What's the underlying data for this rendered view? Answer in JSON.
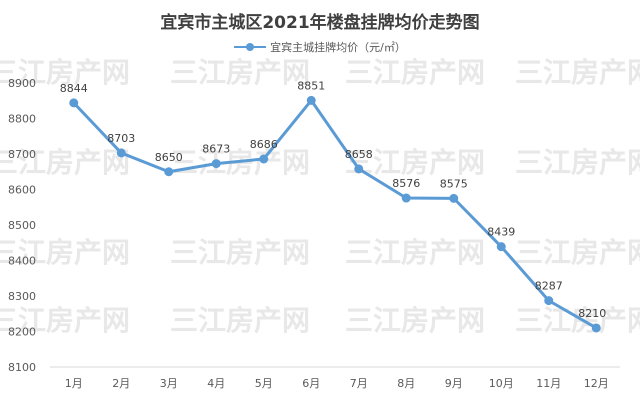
{
  "chart_data": {
    "type": "line",
    "title": "宜宾市主城区2021年楼盘挂牌均价走势图",
    "categories": [
      "1月",
      "2月",
      "3月",
      "4月",
      "5月",
      "6月",
      "7月",
      "8月",
      "9月",
      "10月",
      "11月",
      "12月"
    ],
    "series": [
      {
        "name": "宜宾主城挂牌均价（元/㎡）",
        "values": [
          8844,
          8703,
          8650,
          8673,
          8686,
          8851,
          8658,
          8576,
          8575,
          8439,
          8287,
          8210
        ],
        "color": "#5b9bd5"
      }
    ],
    "yticks": [
      8100,
      8200,
      8300,
      8400,
      8500,
      8600,
      8700,
      8800,
      8900
    ],
    "ylim": [
      8100,
      8950
    ],
    "xlabel": "",
    "ylabel": "",
    "legend_position": "top",
    "grid": false,
    "watermark": "三江房产网"
  }
}
